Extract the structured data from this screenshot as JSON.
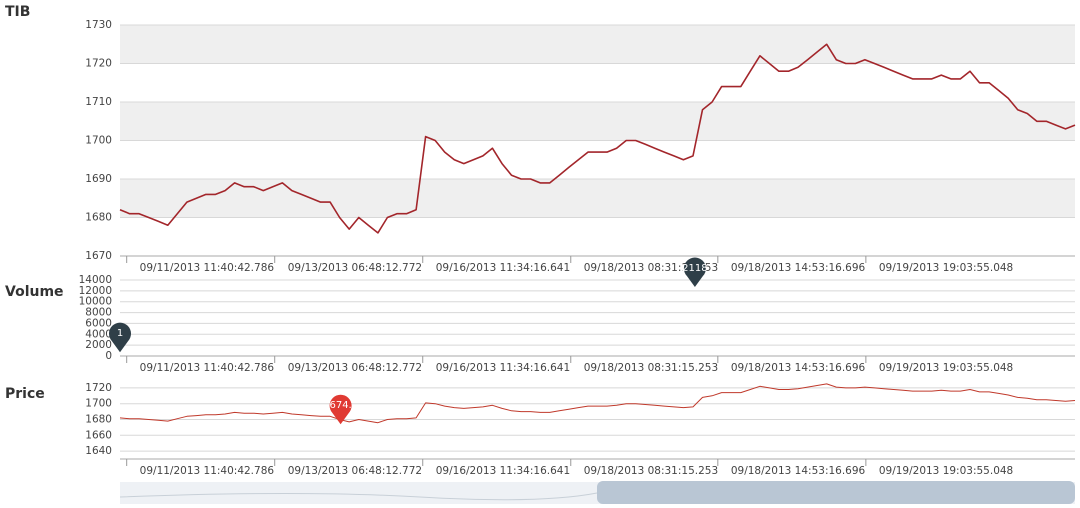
{
  "chart_data": [
    {
      "type": "line",
      "title": "TIB",
      "color": "#a3262b",
      "bands": true,
      "xlim": [
        0,
        100
      ],
      "xticks": [
        {
          "value": 0.7,
          "label": "09/11/2013 11:40:42.786"
        },
        {
          "value": 16.2,
          "label": "09/13/2013 06:48:12.772"
        },
        {
          "value": 31.7,
          "label": "09/16/2013 11:34:16.641"
        },
        {
          "value": 47.2,
          "label": "09/18/2013 08:31:15.253"
        },
        {
          "value": 62.6,
          "label": "09/18/2013 14:53:16.696"
        },
        {
          "value": 78.1,
          "label": "09/19/2013 19:03:55.048"
        }
      ],
      "ylim": [
        1670,
        1730
      ],
      "yticks": [
        1670,
        1680,
        1690,
        1700,
        1710,
        1720,
        1730
      ],
      "values": [
        1682,
        1681,
        1681,
        1680,
        1679,
        1678,
        1681,
        1684,
        1685,
        1686,
        1686,
        1687,
        1689,
        1688,
        1688,
        1687,
        1688,
        1689,
        1687,
        1686,
        1685,
        1684,
        1684,
        1680,
        1677,
        1680,
        1678,
        1676,
        1680,
        1681,
        1681,
        1682,
        1701,
        1700,
        1697,
        1695,
        1694,
        1695,
        1696,
        1698,
        1694,
        1691,
        1690,
        1690,
        1689,
        1689,
        1691,
        1693,
        1695,
        1697,
        1697,
        1697,
        1698,
        1700,
        1700,
        1699,
        1698,
        1697,
        1696,
        1695,
        1696,
        1708,
        1710,
        1714,
        1714,
        1714,
        1718,
        1722,
        1720,
        1718,
        1718,
        1719,
        1721,
        1723,
        1725,
        1721,
        1720,
        1720,
        1721,
        1720,
        1719,
        1718,
        1717,
        1716,
        1716,
        1716,
        1717,
        1716,
        1716,
        1718,
        1715,
        1715,
        1713,
        1711,
        1708,
        1707,
        1705,
        1705,
        1704,
        1703,
        1704
      ]
    },
    {
      "type": "flags",
      "title": "Volume",
      "xlim": [
        0,
        100
      ],
      "xticks": [
        {
          "value": 0.7,
          "label": "09/11/2013 11:40:42.786"
        },
        {
          "value": 16.2,
          "label": "09/13/2013 06:48:12.772"
        },
        {
          "value": 31.7,
          "label": "09/16/2013 11:34:16.641"
        },
        {
          "value": 47.2,
          "label": "09/18/2013 08:31:15.253"
        },
        {
          "value": 62.6,
          "label": "09/18/2013 14:53:16.696"
        },
        {
          "value": 78.1,
          "label": "09/19/2013 19:03:55.048"
        }
      ],
      "ylim": [
        0,
        14000
      ],
      "yticks": [
        0,
        2000,
        4000,
        6000,
        8000,
        10000,
        12000,
        14000
      ],
      "markers": [
        {
          "x": 0,
          "y": 700,
          "label": "1",
          "color": "#2f3f48"
        },
        {
          "x": 60.2,
          "y": 12700,
          "label": "2118",
          "color": "#2f3f48"
        }
      ]
    },
    {
      "type": "line",
      "title": "Price",
      "color": "#c0392b",
      "xlim": [
        0,
        100
      ],
      "xticks": [
        {
          "value": 0.7,
          "label": "09/11/2013 11:40:42.786"
        },
        {
          "value": 16.2,
          "label": "09/13/2013 06:48:12.772"
        },
        {
          "value": 31.7,
          "label": "09/16/2013 11:34:16.641"
        },
        {
          "value": 47.2,
          "label": "09/18/2013 08:31:15.253"
        },
        {
          "value": 62.6,
          "label": "09/18/2013 14:53:16.696"
        },
        {
          "value": 78.1,
          "label": "09/19/2013 19:03:55.048"
        }
      ],
      "ylim": [
        1630,
        1730
      ],
      "yticks": [
        1640,
        1660,
        1680,
        1700,
        1720
      ],
      "values": [
        1682,
        1681,
        1681,
        1680,
        1679,
        1678,
        1681,
        1684,
        1685,
        1686,
        1686,
        1687,
        1689,
        1688,
        1688,
        1687,
        1688,
        1689,
        1687,
        1686,
        1685,
        1684,
        1684,
        1680,
        1677,
        1680,
        1678,
        1676,
        1680,
        1681,
        1681,
        1682,
        1701,
        1700,
        1697,
        1695,
        1694,
        1695,
        1696,
        1698,
        1694,
        1691,
        1690,
        1690,
        1689,
        1689,
        1691,
        1693,
        1695,
        1697,
        1697,
        1697,
        1698,
        1700,
        1700,
        1699,
        1698,
        1697,
        1696,
        1695,
        1696,
        1708,
        1710,
        1714,
        1714,
        1714,
        1718,
        1722,
        1720,
        1718,
        1718,
        1719,
        1721,
        1723,
        1725,
        1721,
        1720,
        1720,
        1721,
        1720,
        1719,
        1718,
        1717,
        1716,
        1716,
        1716,
        1717,
        1716,
        1716,
        1718,
        1715,
        1715,
        1713,
        1711,
        1708,
        1707,
        1705,
        1705,
        1704,
        1703,
        1704
      ],
      "markers": [
        {
          "x": 23.1,
          "y": 1674,
          "label": "674.",
          "color": "#e03a33"
        }
      ]
    }
  ]
}
